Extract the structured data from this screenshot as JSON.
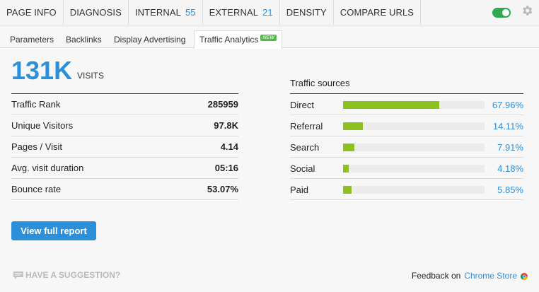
{
  "nav": {
    "tabs": [
      {
        "label": "PAGE INFO"
      },
      {
        "label": "DIAGNOSIS"
      },
      {
        "label": "INTERNAL",
        "count": "55"
      },
      {
        "label": "EXTERNAL",
        "count": "21"
      },
      {
        "label": "DENSITY"
      },
      {
        "label": "COMPARE URLS"
      }
    ],
    "toggle_on": true
  },
  "subnav": {
    "tabs": [
      "Parameters",
      "Backlinks",
      "Display Advertising",
      "Traffic Analytics"
    ],
    "active": "Traffic Analytics",
    "new_badge": "NEW"
  },
  "visits": {
    "value": "131K",
    "label": "VISITS"
  },
  "stats": [
    {
      "label": "Traffic Rank",
      "value": "285959"
    },
    {
      "label": "Unique Visitors",
      "value": "97.8K"
    },
    {
      "label": "Pages / Visit",
      "value": "4.14"
    },
    {
      "label": "Avg. visit duration",
      "value": "05:16"
    },
    {
      "label": "Bounce rate",
      "value": "53.07%"
    }
  ],
  "sources": {
    "title": "Traffic sources",
    "items": [
      {
        "label": "Direct",
        "percent": "67.96%",
        "fraction": 0.6796
      },
      {
        "label": "Referral",
        "percent": "14.11%",
        "fraction": 0.1411
      },
      {
        "label": "Search",
        "percent": "7.91%",
        "fraction": 0.0791
      },
      {
        "label": "Social",
        "percent": "4.18%",
        "fraction": 0.0418
      },
      {
        "label": "Paid",
        "percent": "5.85%",
        "fraction": 0.0585
      }
    ]
  },
  "button": {
    "label": "View full report"
  },
  "footer": {
    "suggestion": "HAVE A SUGGESTION?",
    "feedback_prefix": "Feedback on",
    "feedback_link": "Chrome Store"
  },
  "colors": {
    "accent": "#2b8fd9",
    "bar_fill": "#8cc11f",
    "toggle": "#2fa84f"
  },
  "icons": {
    "settings": "gear-icon",
    "suggestion": "speech-bubble-icon",
    "store": "chrome-icon"
  }
}
